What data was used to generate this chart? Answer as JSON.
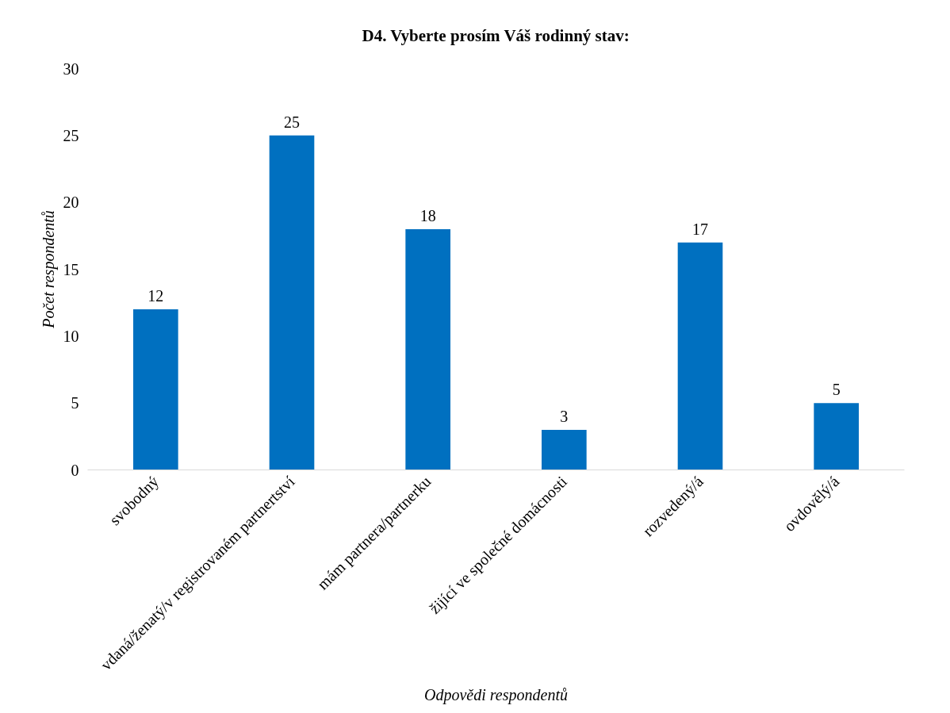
{
  "chart_data": {
    "type": "bar",
    "title": "D4. Vyberte prosím Váš rodinný stav:",
    "xlabel": "Odpovědi respondentů",
    "ylabel": "Počet respondentů",
    "categories": [
      "svobodný",
      "vdaná/ženatý/v registrovaném partnertství",
      "mám partnera/partnerku",
      "žijící ve společné domácnosti",
      "rozvedený/á",
      "ovdovělý/á"
    ],
    "values": [
      12,
      25,
      18,
      3,
      17,
      5
    ],
    "color": "#0070c0",
    "ylim": [
      0,
      30
    ],
    "yticks": [
      0,
      5,
      10,
      15,
      20,
      25,
      30
    ],
    "data_labels": true,
    "grid": false
  }
}
